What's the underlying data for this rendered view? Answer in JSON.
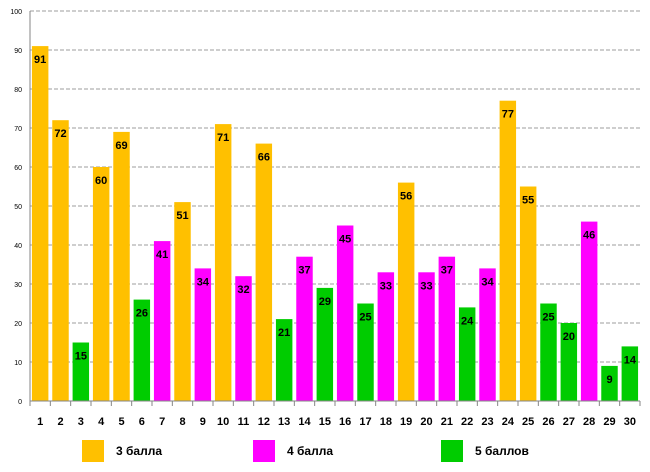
{
  "chart_data": {
    "type": "bar",
    "categories": [
      "1",
      "2",
      "3",
      "4",
      "5",
      "6",
      "7",
      "8",
      "9",
      "10",
      "11",
      "12",
      "13",
      "14",
      "15",
      "16",
      "17",
      "18",
      "19",
      "20",
      "21",
      "22",
      "23",
      "24",
      "25",
      "26",
      "27",
      "28",
      "29",
      "30"
    ],
    "values": [
      91,
      72,
      15,
      60,
      69,
      26,
      41,
      51,
      34,
      71,
      32,
      66,
      21,
      37,
      29,
      45,
      25,
      33,
      56,
      33,
      37,
      24,
      34,
      77,
      55,
      25,
      20,
      46,
      9,
      14
    ],
    "groups": [
      "3 балла",
      "3 балла",
      "5 баллов",
      "3 балла",
      "3 балла",
      "5 баллов",
      "4 балла",
      "3 балла",
      "4 балла",
      "3 балла",
      "4 балла",
      "3 балла",
      "5 баллов",
      "4 балла",
      "5 баллов",
      "4 балла",
      "5 баллов",
      "4 балла",
      "3 балла",
      "4 балла",
      "4 балла",
      "5 баллов",
      "4 балла",
      "3 балла",
      "3 балла",
      "5 баллов",
      "5 баллов",
      "4 балла",
      "5 баллов",
      "5 баллов"
    ],
    "legend": [
      {
        "name": "3 балла",
        "color": "#FFC000"
      },
      {
        "name": "4 балла",
        "color": "#FF00FF"
      },
      {
        "name": "5 баллов",
        "color": "#00CC00"
      }
    ],
    "ylim": [
      0,
      100
    ],
    "yticks": [
      "0",
      "10",
      "20",
      "30",
      "40",
      "50",
      "60",
      "70",
      "80",
      "90",
      "100"
    ],
    "grid": true,
    "legend_position": "bottom"
  }
}
